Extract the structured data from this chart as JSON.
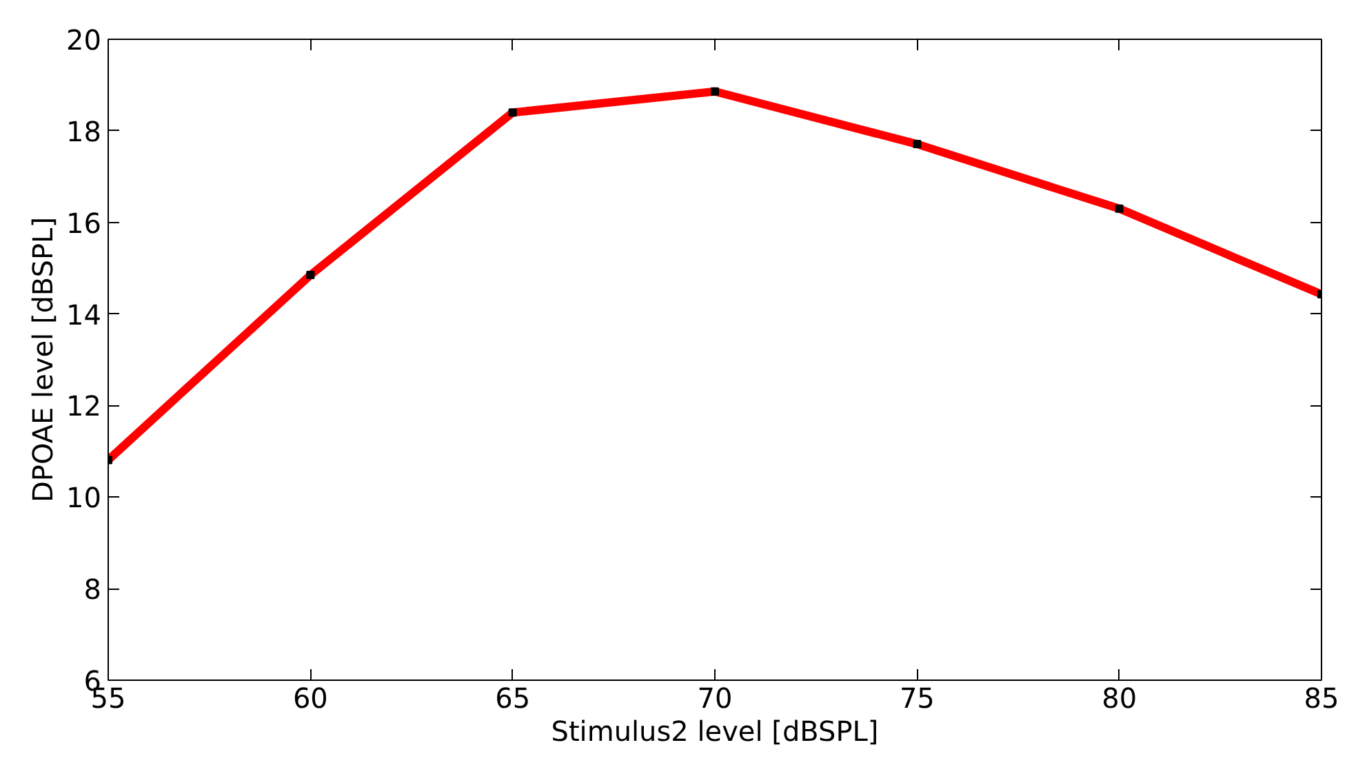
{
  "chart_data": {
    "type": "line",
    "xlabel": "Stimulus2 level [dBSPL]",
    "ylabel": "DPOAE level [dBSPL]",
    "x": [
      55,
      60,
      65,
      70,
      75,
      80,
      85
    ],
    "series": [
      {
        "color": "#ff0000",
        "values": [
          10.81,
          14.85,
          18.4,
          18.86,
          17.71,
          16.3,
          14.43
        ]
      }
    ],
    "xlim": [
      55,
      85
    ],
    "ylim": [
      6,
      20
    ],
    "xticks": [
      55,
      60,
      65,
      70,
      75,
      80,
      85
    ],
    "yticks": [
      6,
      8,
      10,
      12,
      14,
      16,
      18,
      20
    ],
    "grid": false,
    "marker": "square",
    "line_style": "solid"
  }
}
